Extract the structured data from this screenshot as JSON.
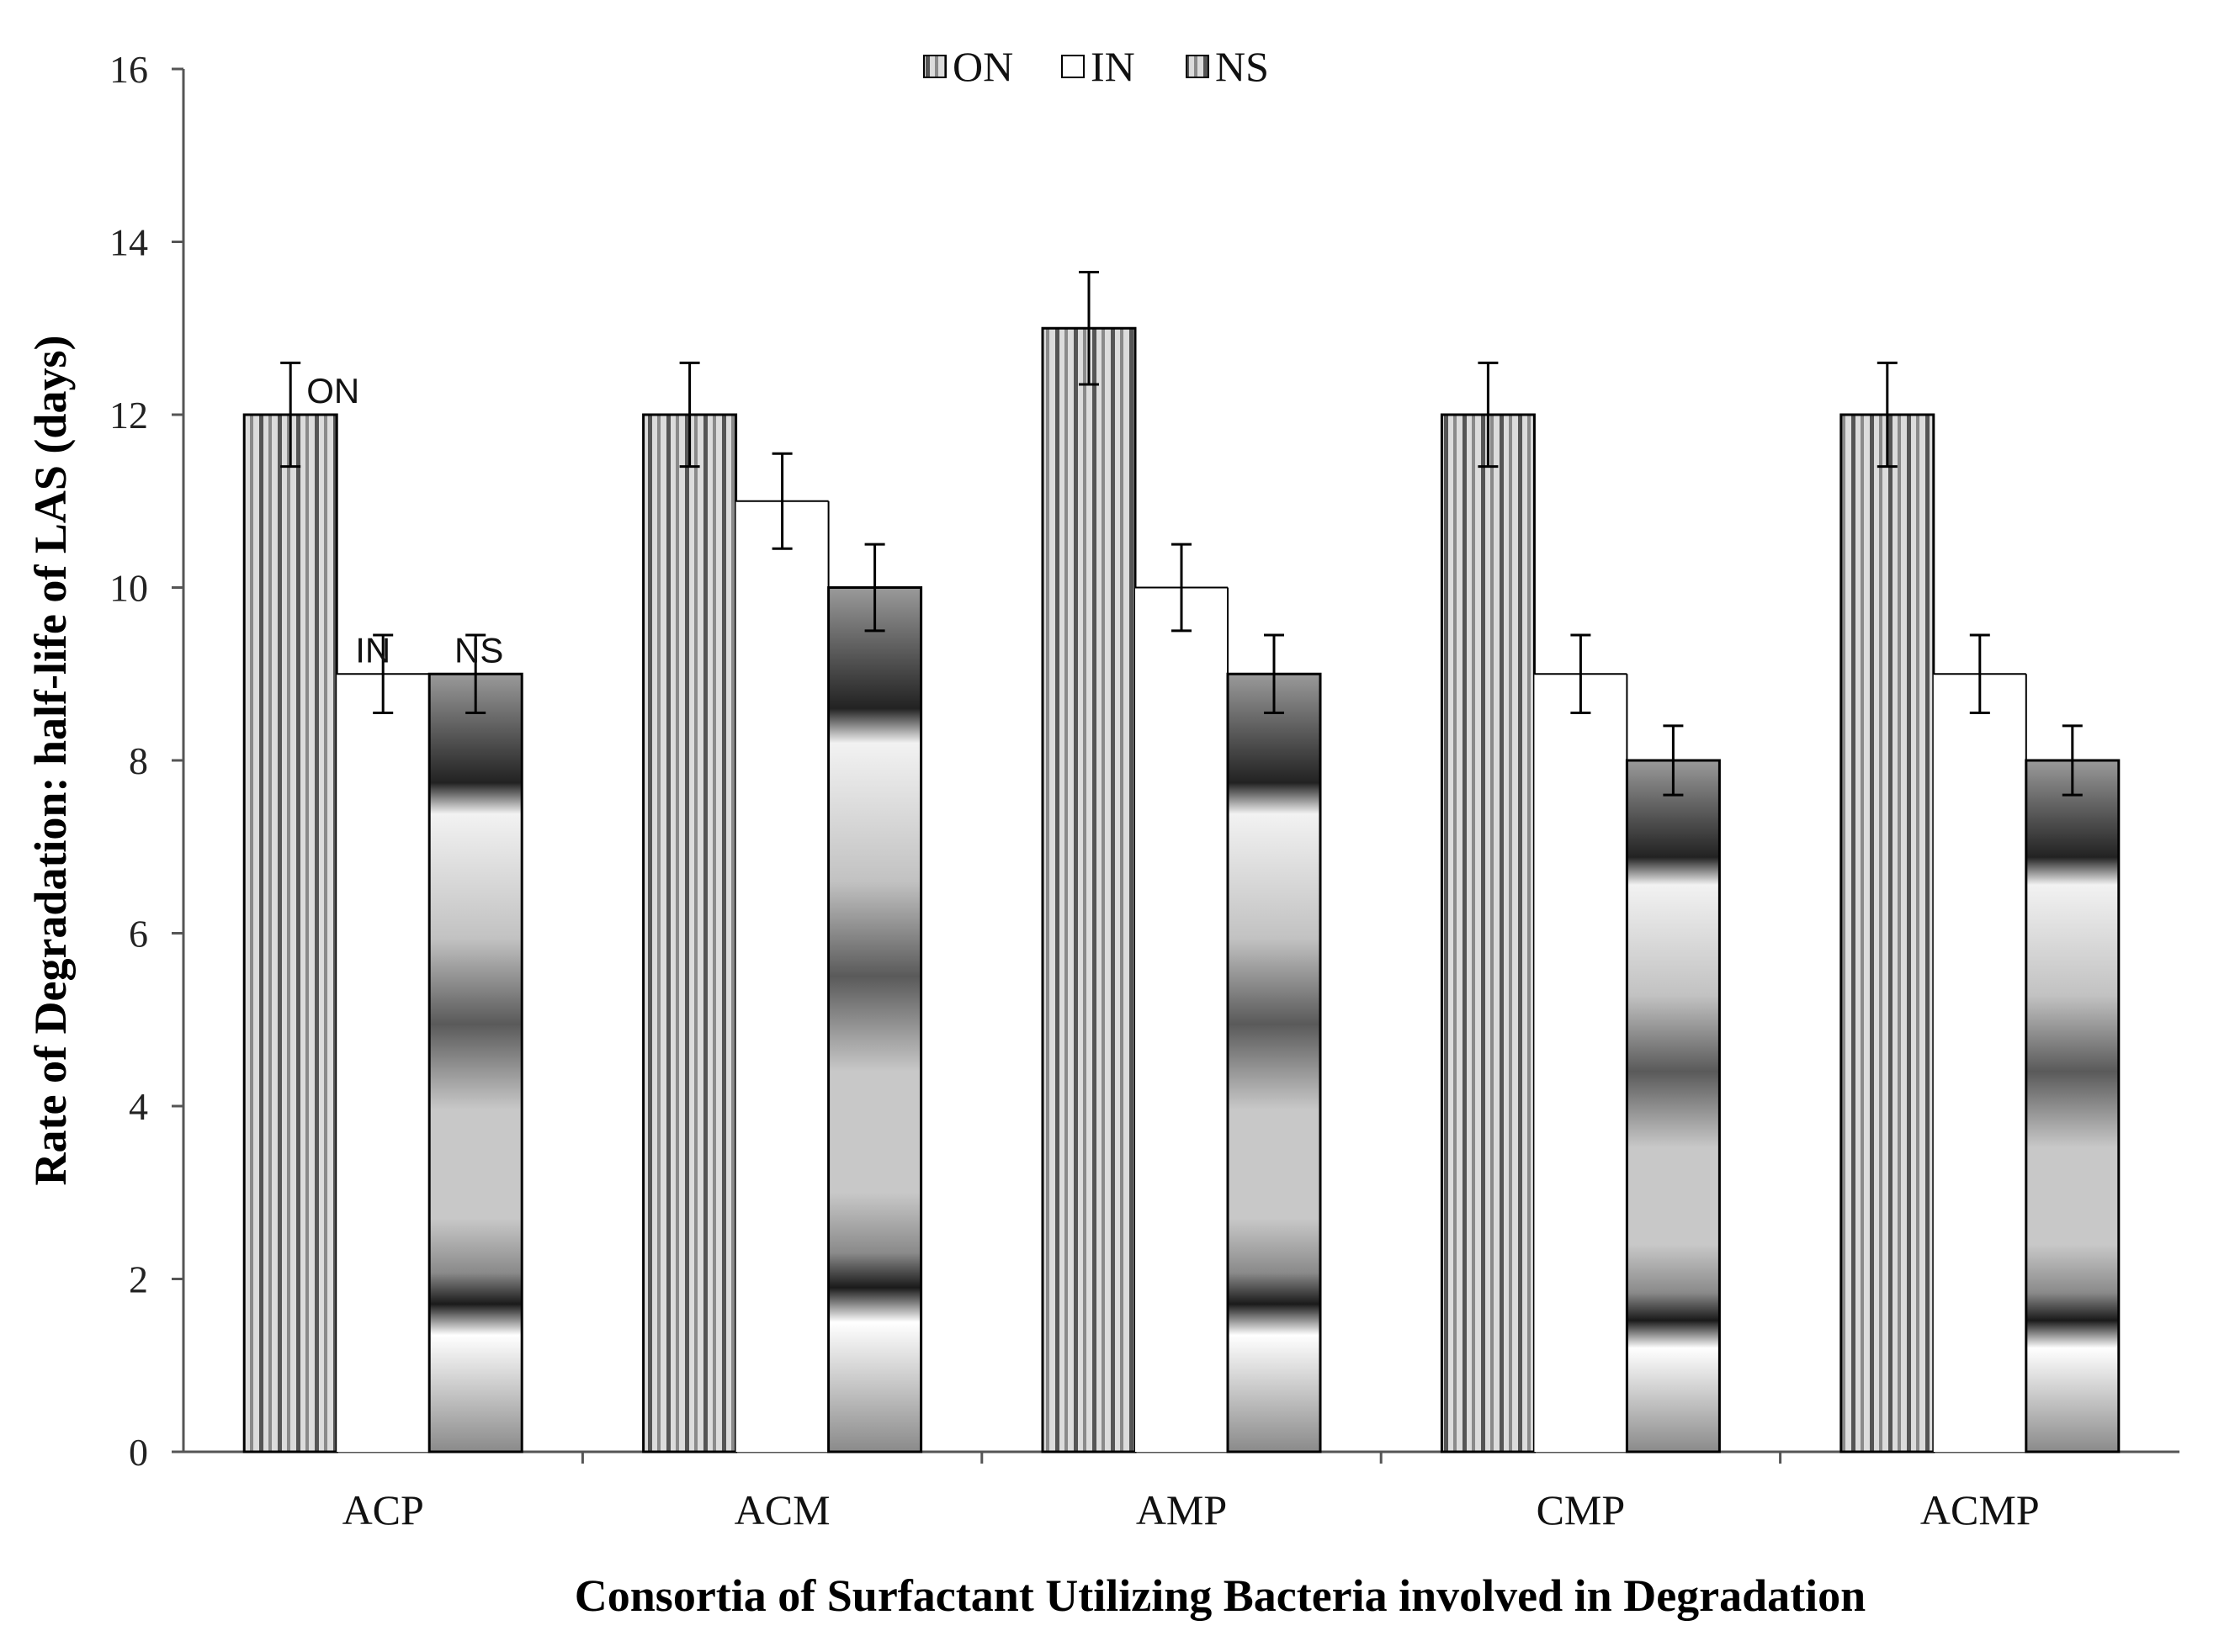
{
  "chart_data": {
    "type": "bar",
    "title": "",
    "xlabel": "Consortia of Surfactant Utilizing Bacteria involved in Degradation",
    "ylabel": "Rate of Degradation: half-life of LAS (days)",
    "ylim": [
      0,
      16
    ],
    "yticks": [
      "0",
      "2",
      "4",
      "6",
      "8",
      "10",
      "12",
      "14",
      "16"
    ],
    "grid": false,
    "legend_position": "top-center",
    "categories": [
      "ACP",
      "ACM",
      "AMP",
      "CMP",
      "ACMP"
    ],
    "series": [
      {
        "name": "ON",
        "values": [
          12,
          12,
          13,
          12,
          12
        ],
        "errors": [
          0.6,
          0.6,
          0.65,
          0.6,
          0.6
        ],
        "style": "vertical-stripes"
      },
      {
        "name": "IN",
        "values": [
          9,
          11,
          10,
          9,
          9
        ],
        "errors": [
          0.45,
          0.55,
          0.5,
          0.45,
          0.45
        ],
        "style": "white-stepped"
      },
      {
        "name": "NS",
        "values": [
          9,
          10,
          9,
          8,
          8
        ],
        "errors": [
          0.45,
          0.5,
          0.45,
          0.4,
          0.4
        ],
        "style": "gradient-bands"
      }
    ],
    "annotations": [
      {
        "text": "ON",
        "category": "ACP",
        "series": "ON"
      },
      {
        "text": "IN",
        "category": "ACP",
        "series": "IN"
      },
      {
        "text": "NS",
        "category": "ACP",
        "series": "NS"
      }
    ],
    "colors": {
      "axis": "#555555",
      "bar_outline": "#000000",
      "stripe_dark": "#6e6e6e",
      "stripe_light": "#d9d9d9"
    }
  }
}
